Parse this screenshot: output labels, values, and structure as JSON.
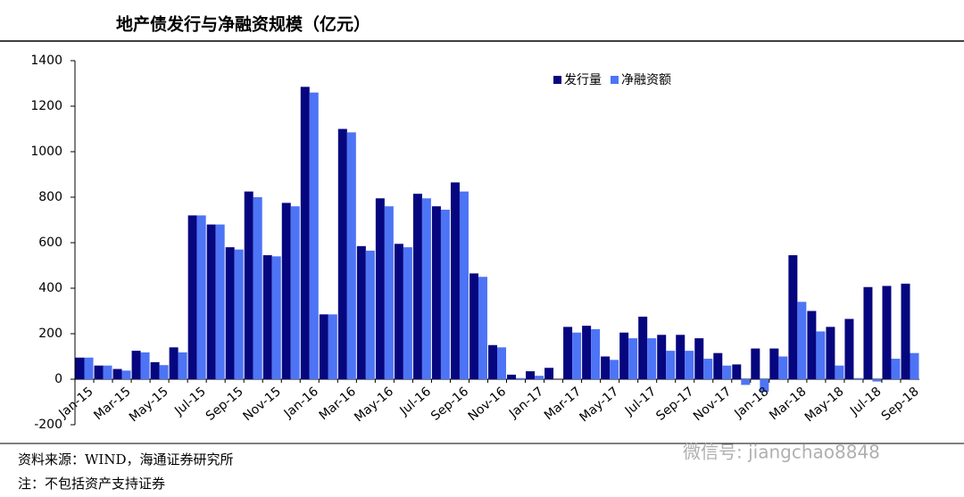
{
  "chart_data": {
    "type": "bar",
    "title": "地产债发行与净融资规模（亿元）",
    "categories": [
      "Jan-15",
      null,
      "Mar-15",
      null,
      "May-15",
      null,
      "Jul-15",
      null,
      "Sep-15",
      null,
      "Nov-15",
      null,
      "Jan-16",
      null,
      "Mar-16",
      null,
      "May-16",
      null,
      "Jul-16",
      null,
      "Sep-16",
      null,
      "Nov-16",
      null,
      "Jan-17",
      null,
      "Mar-17",
      null,
      "May-17",
      null,
      "Jul-17",
      null,
      "Sep-17",
      null,
      "Nov-17",
      null,
      "Jan-18",
      null,
      "Mar-18",
      null,
      "May-18",
      null,
      "Jul-18",
      null,
      "Sep-18"
    ],
    "series": [
      {
        "name": "发行量",
        "color": "#06067f",
        "values": [
          95,
          60,
          45,
          125,
          75,
          140,
          720,
          680,
          580,
          825,
          545,
          775,
          1285,
          285,
          1100,
          585,
          795,
          595,
          815,
          760,
          865,
          465,
          150,
          20,
          35,
          50,
          230,
          235,
          100,
          205,
          275,
          195,
          195,
          180,
          115,
          65,
          135,
          135,
          545,
          300,
          230,
          265,
          405,
          410,
          420
        ]
      },
      {
        "name": "净融资额",
        "color": "#4d74f5",
        "values": [
          95,
          60,
          38,
          118,
          62,
          118,
          720,
          680,
          570,
          800,
          540,
          760,
          1260,
          285,
          1085,
          565,
          760,
          580,
          795,
          745,
          825,
          450,
          140,
          5,
          15,
          0,
          205,
          220,
          85,
          180,
          180,
          125,
          125,
          90,
          60,
          -25,
          -55,
          100,
          340,
          210,
          60,
          5,
          -10,
          90,
          115
        ]
      }
    ],
    "ylim": [
      -200,
      1400
    ],
    "yticks": [
      -200,
      0,
      200,
      400,
      600,
      800,
      1000,
      1200,
      1400
    ],
    "legend": "top-right",
    "source": "资料来源：WIND，海通证券研究所",
    "note": "注：不包括资产支持证券",
    "watermark": "微信号: jiangchao8848"
  }
}
